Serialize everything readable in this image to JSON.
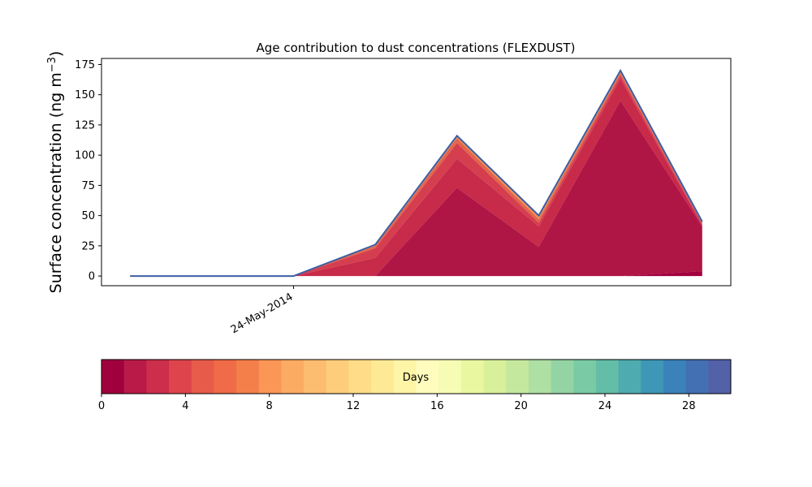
{
  "chart_data": {
    "type": "area",
    "title": "Age contribution to dust concentrations (FLEXDUST)",
    "ylabel": "Surface concentration (ng m",
    "ylabel_sup": "−3",
    "ylabel_close": ")",
    "xlabel": "",
    "x": [
      0,
      1,
      2,
      3,
      4,
      5,
      6,
      7
    ],
    "xtick_label": "24-May-2014",
    "xtick_at": 2,
    "xlim": [
      -0.35,
      7.35
    ],
    "ylim": [
      -8,
      180
    ],
    "yticks": [
      0,
      25,
      50,
      75,
      100,
      125,
      150,
      175
    ],
    "stack_boundaries": [
      [
        0,
        0,
        0,
        0,
        0,
        0,
        0,
        4
      ],
      [
        0,
        0,
        0,
        0,
        73,
        24,
        145,
        41
      ],
      [
        0,
        0,
        0,
        15,
        97,
        41,
        163,
        42
      ],
      [
        0,
        0,
        0,
        23,
        110,
        44,
        166,
        43
      ],
      [
        0,
        0,
        0,
        25,
        114,
        47,
        168,
        44
      ],
      [
        0,
        0,
        0,
        26,
        116,
        50,
        170,
        45
      ]
    ],
    "total": [
      0,
      0,
      0,
      26,
      116,
      50,
      170,
      45
    ],
    "band_colors": [
      "#a1003f",
      "#af1545",
      "#c82a4a",
      "#d53e4f",
      "#e2654a",
      "#f48f55"
    ],
    "total_line_color": "#3e5ea3",
    "colorbar": {
      "label": "Days",
      "min": 0,
      "max": 30,
      "ticks": [
        0,
        4,
        8,
        12,
        16,
        20,
        24,
        28
      ],
      "colors": [
        "#a1003f",
        "#b91a47",
        "#cd2e4c",
        "#dd444c",
        "#e75b4a",
        "#f06b47",
        "#f57f4b",
        "#fa9656",
        "#fcab63",
        "#fdbd70",
        "#fecd7b",
        "#fedc88",
        "#fee995",
        "#fff5a6",
        "#fffcbd",
        "#f7fcb4",
        "#eaf7a1",
        "#d9f09b",
        "#c5e89f",
        "#aedfa3",
        "#94d4a4",
        "#7acba5",
        "#63bda7",
        "#4eabaf",
        "#3e97b6",
        "#3a82b9",
        "#4370b2",
        "#5361a8"
      ]
    }
  }
}
